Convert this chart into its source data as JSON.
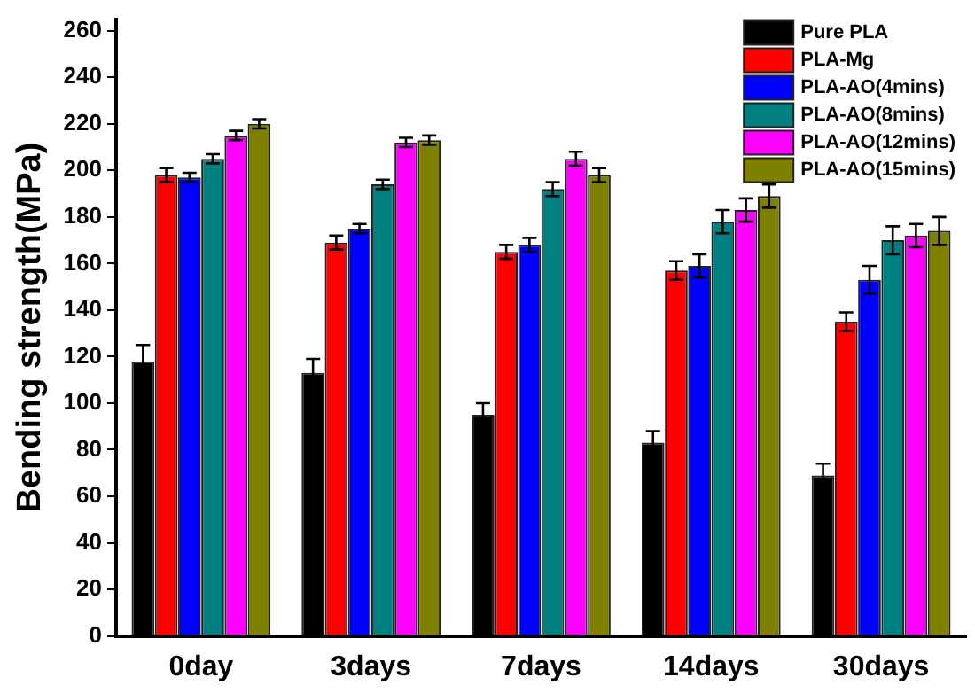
{
  "chart_data": {
    "type": "bar",
    "ylabel": "Bending strength(MPa)",
    "categories": [
      "0day",
      "3days",
      "7days",
      "14days",
      "30days"
    ],
    "series": [
      {
        "name": "Pure PLA",
        "color": "#000000",
        "values": [
          118,
          113,
          95,
          83,
          69
        ],
        "errors": [
          7,
          6,
          5,
          5,
          5
        ]
      },
      {
        "name": "PLA-Mg",
        "color": "#ff0000",
        "values": [
          198,
          169,
          165,
          157,
          135
        ],
        "errors": [
          3,
          3,
          3,
          4,
          4
        ]
      },
      {
        "name": "PLA-AO(4mins)",
        "color": "#0000ff",
        "values": [
          197,
          175,
          168,
          159,
          153
        ],
        "errors": [
          2,
          2,
          3,
          5,
          6
        ]
      },
      {
        "name": "PLA-AO(8mins)",
        "color": "#008080",
        "values": [
          205,
          194,
          192,
          178,
          170
        ],
        "errors": [
          2,
          2,
          3,
          5,
          6
        ]
      },
      {
        "name": "PLA-AO(12mins)",
        "color": "#ff00ff",
        "values": [
          215,
          212,
          205,
          183,
          172
        ],
        "errors": [
          2,
          2,
          3,
          5,
          5
        ]
      },
      {
        "name": "PLA-AO(15mins)",
        "color": "#808000",
        "values": [
          220,
          213,
          198,
          189,
          174
        ],
        "errors": [
          2,
          2,
          3,
          5,
          6
        ]
      }
    ],
    "ylim": [
      0,
      265
    ],
    "yticks": [
      0,
      20,
      40,
      60,
      80,
      100,
      120,
      140,
      160,
      180,
      200,
      220,
      240,
      260
    ],
    "grid": false,
    "legend": "top right"
  }
}
